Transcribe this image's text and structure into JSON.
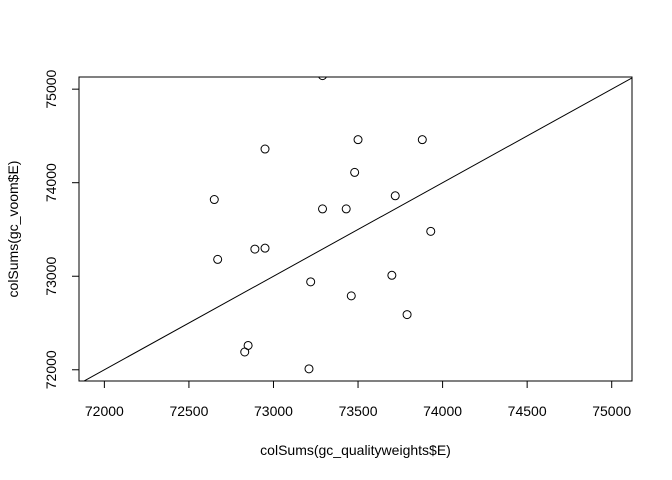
{
  "chart_data": {
    "type": "scatter",
    "title": "",
    "xlabel": "colSums(gc_qualityweights$E)",
    "ylabel": "colSums(gc_voom$E)",
    "xlim": [
      71850,
      75120
    ],
    "ylim": [
      71880,
      75130
    ],
    "x_ticks": [
      72000,
      72500,
      73000,
      73500,
      74000,
      74500,
      75000
    ],
    "x_tick_labels": [
      "72000",
      "72500",
      "73000",
      "73500",
      "74000",
      "74500",
      "75000"
    ],
    "y_ticks": [
      72000,
      73000,
      74000,
      75000
    ],
    "y_tick_labels": [
      "72000",
      "73000",
      "74000",
      "75000"
    ],
    "grid": false,
    "reference_line": {
      "type": "identity",
      "intercept": 0,
      "slope": 1
    },
    "points": [
      {
        "x": 73290,
        "y": 75145
      },
      {
        "x": 72950,
        "y": 74360
      },
      {
        "x": 73500,
        "y": 74460
      },
      {
        "x": 73880,
        "y": 74460
      },
      {
        "x": 73480,
        "y": 74110
      },
      {
        "x": 73720,
        "y": 73860
      },
      {
        "x": 72650,
        "y": 73820
      },
      {
        "x": 73290,
        "y": 73720
      },
      {
        "x": 73430,
        "y": 73720
      },
      {
        "x": 73930,
        "y": 73480
      },
      {
        "x": 72890,
        "y": 73290
      },
      {
        "x": 72950,
        "y": 73300
      },
      {
        "x": 72670,
        "y": 73180
      },
      {
        "x": 73700,
        "y": 73010
      },
      {
        "x": 73220,
        "y": 72940
      },
      {
        "x": 73460,
        "y": 72790
      },
      {
        "x": 73790,
        "y": 72590
      },
      {
        "x": 72850,
        "y": 72260
      },
      {
        "x": 72830,
        "y": 72190
      },
      {
        "x": 73210,
        "y": 72010
      }
    ]
  }
}
